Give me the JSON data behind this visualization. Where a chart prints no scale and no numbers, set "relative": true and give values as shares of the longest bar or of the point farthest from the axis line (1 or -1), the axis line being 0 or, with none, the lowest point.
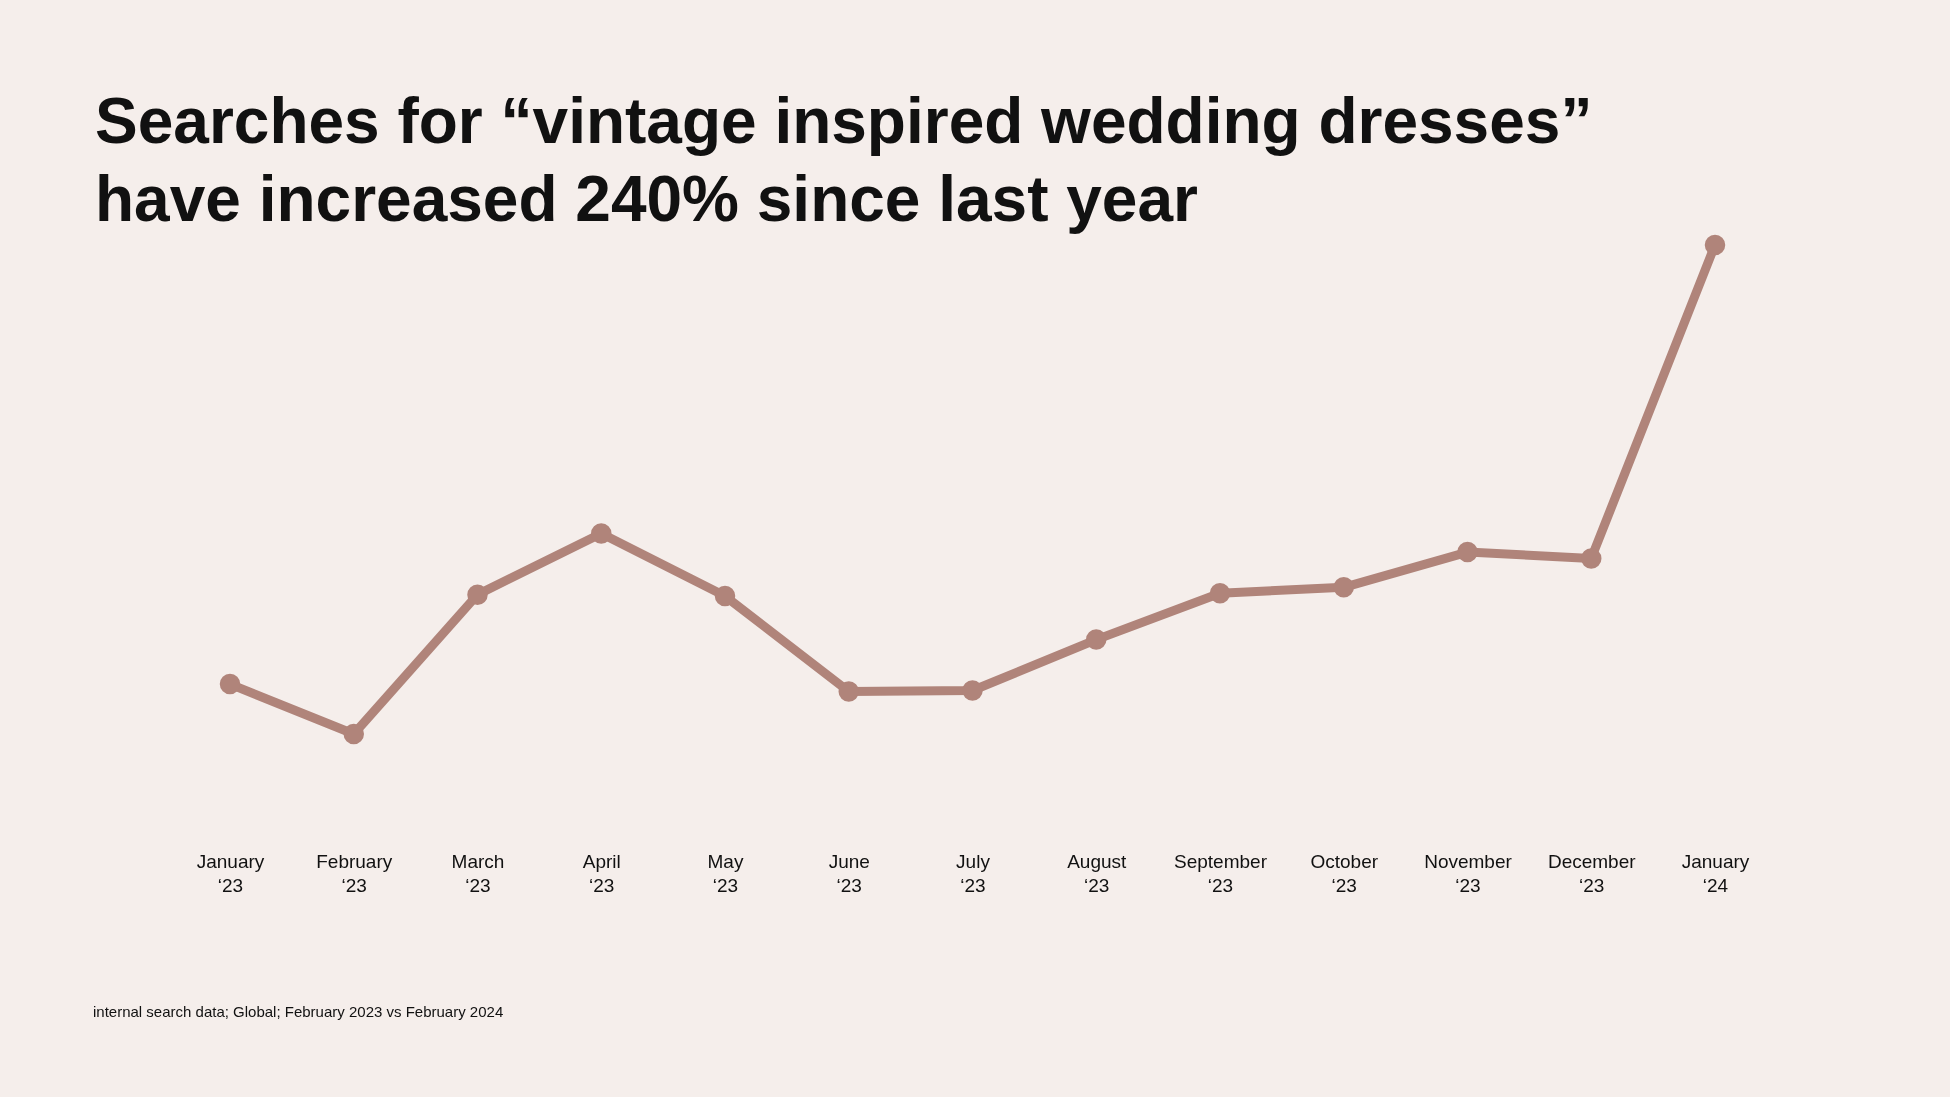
{
  "chart_data": {
    "type": "line",
    "title": "Searches for “vintage inspired wedding dresses”\nhave increased 240% since last year",
    "categories": [
      "January ‘23",
      "February ‘23",
      "March ‘23",
      "April ‘23",
      "May ‘23",
      "June ‘23",
      "July ‘23",
      "August ‘23",
      "September ‘23",
      "October ‘23",
      "November ‘23",
      "December ‘23",
      "January ‘24"
    ],
    "values": [
      0.102,
      0,
      0.285,
      0.41,
      0.282,
      0.087,
      0.089,
      0.193,
      0.288,
      0.3,
      0.372,
      0.359,
      1
    ],
    "color": "#b0847a",
    "relative": true,
    "marker": "circle",
    "annotations": [
      "internal search data; Global; February 2023 vs February 2024"
    ]
  }
}
